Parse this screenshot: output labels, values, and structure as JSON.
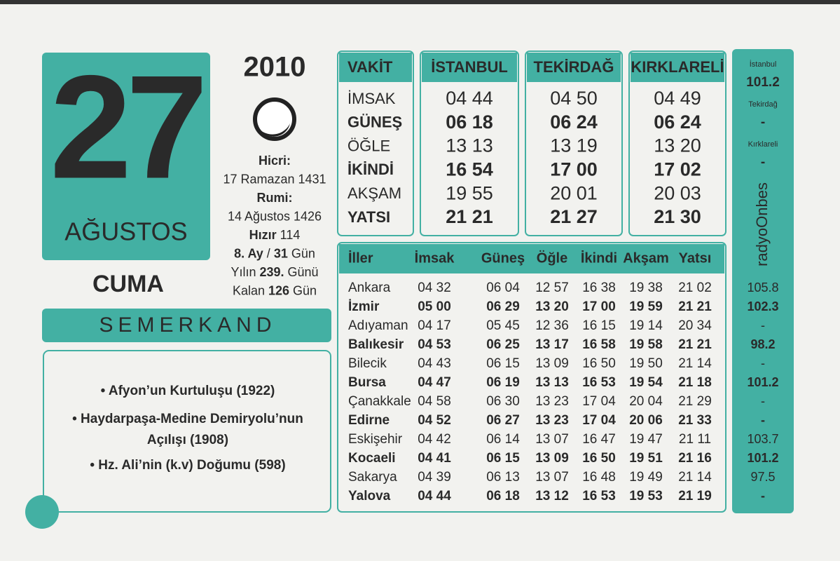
{
  "date": {
    "day": "27",
    "month": "AĞUSTOS",
    "weekday": "CUMA",
    "year": "2010"
  },
  "info": [
    [
      {
        "text": "Hicri:",
        "bold": true
      }
    ],
    [
      {
        "text": "17 Ramazan 1431",
        "bold": false
      }
    ],
    [
      {
        "text": "Rumi:",
        "bold": true
      }
    ],
    [
      {
        "text": "14 Ağustos 1426",
        "bold": false
      }
    ],
    [
      {
        "text": "Hızır",
        "bold": true
      },
      {
        "text": " 114",
        "bold": false
      }
    ],
    [
      {
        "text": "8. Ay",
        "bold": true
      },
      {
        "text": " / ",
        "bold": false
      },
      {
        "text": "31",
        "bold": true
      },
      {
        "text": " Gün",
        "bold": false
      }
    ],
    [
      {
        "text": "Yılın ",
        "bold": false
      },
      {
        "text": "239.",
        "bold": true
      },
      {
        "text": " Günü",
        "bold": false
      }
    ],
    [
      {
        "text": "Kalan ",
        "bold": false
      },
      {
        "text": "126",
        "bold": true
      },
      {
        "text": " Gün",
        "bold": false
      }
    ]
  ],
  "brand": "SEMERKAND",
  "events": [
    "• Afyon’un Kurtuluşu (1922)",
    "• Haydarpaşa-Medine Demiryolu’nun",
    "Açılışı (1908)",
    "• Hz. Ali’nin (k.v) Doğumu (598)"
  ],
  "times": {
    "header": [
      "VAKİT",
      "İSTANBUL",
      "TEKİRDAĞ",
      "KIRKLARELİ"
    ],
    "rows": [
      [
        "İMSAK",
        "04 44",
        "04 50",
        "04 49"
      ],
      [
        "GÜNEŞ",
        "06 18",
        "06 24",
        "06 24"
      ],
      [
        "ÖĞLE",
        "13 13",
        "13 19",
        "13 20"
      ],
      [
        "İKİNDİ",
        "16 54",
        "17 00",
        "17 02"
      ],
      [
        "AKŞAM",
        "19 55",
        "20 01",
        "20 03"
      ],
      [
        "YATSI",
        "21 21",
        "21 27",
        "21 30"
      ]
    ]
  },
  "cities": {
    "header": [
      "İller",
      "İmsak",
      "Güneş",
      "Öğle",
      "İkindi",
      "Akşam",
      "Yatsı"
    ],
    "rows": [
      [
        "Ankara",
        "04 32",
        "06 04",
        "12 57",
        "16 38",
        "19 38",
        "21 02"
      ],
      [
        "İzmir",
        "05 00",
        "06 29",
        "13 20",
        "17 00",
        "19 59",
        "21 21"
      ],
      [
        "Adıyaman",
        "04 17",
        "05 45",
        "12 36",
        "16 15",
        "19 14",
        "20 34"
      ],
      [
        "Balıkesir",
        "04 53",
        "06 25",
        "13 17",
        "16 58",
        "19 58",
        "21 21"
      ],
      [
        "Bilecik",
        "04 43",
        "06 15",
        "13 09",
        "16 50",
        "19 50",
        "21 14"
      ],
      [
        "Bursa",
        "04 47",
        "06 19",
        "13 13",
        "16 53",
        "19 54",
        "21 18"
      ],
      [
        "Çanakkale",
        "04 58",
        "06 30",
        "13 23",
        "17 04",
        "20 04",
        "21 29"
      ],
      [
        "Edirne",
        "04 52",
        "06 27",
        "13 23",
        "17 04",
        "20 06",
        "21 33"
      ],
      [
        "Eskişehir",
        "04 42",
        "06 14",
        "13 07",
        "16 47",
        "19 47",
        "21 11"
      ],
      [
        "Kocaeli",
        "04 41",
        "06 15",
        "13 09",
        "16 50",
        "19 51",
        "21 16"
      ],
      [
        "Sakarya",
        "04 39",
        "06 13",
        "13 07",
        "16 48",
        "19 49",
        "21 14"
      ],
      [
        "Yalova",
        "04 44",
        "06 18",
        "13 12",
        "16 53",
        "19 53",
        "21 19"
      ]
    ]
  },
  "radio": {
    "stations": [
      {
        "name": "İstanbul",
        "freq": "101.2"
      },
      {
        "name": "Tekirdağ",
        "freq": "-"
      },
      {
        "name": "Kırklareli",
        "freq": "-"
      }
    ],
    "logo": "radyoOnbes",
    "freqs": [
      "105.8",
      "102.3",
      "-",
      "98.2",
      "-",
      "101.2",
      "-",
      "-",
      "103.7",
      "101.2",
      "97.5",
      "-"
    ]
  }
}
